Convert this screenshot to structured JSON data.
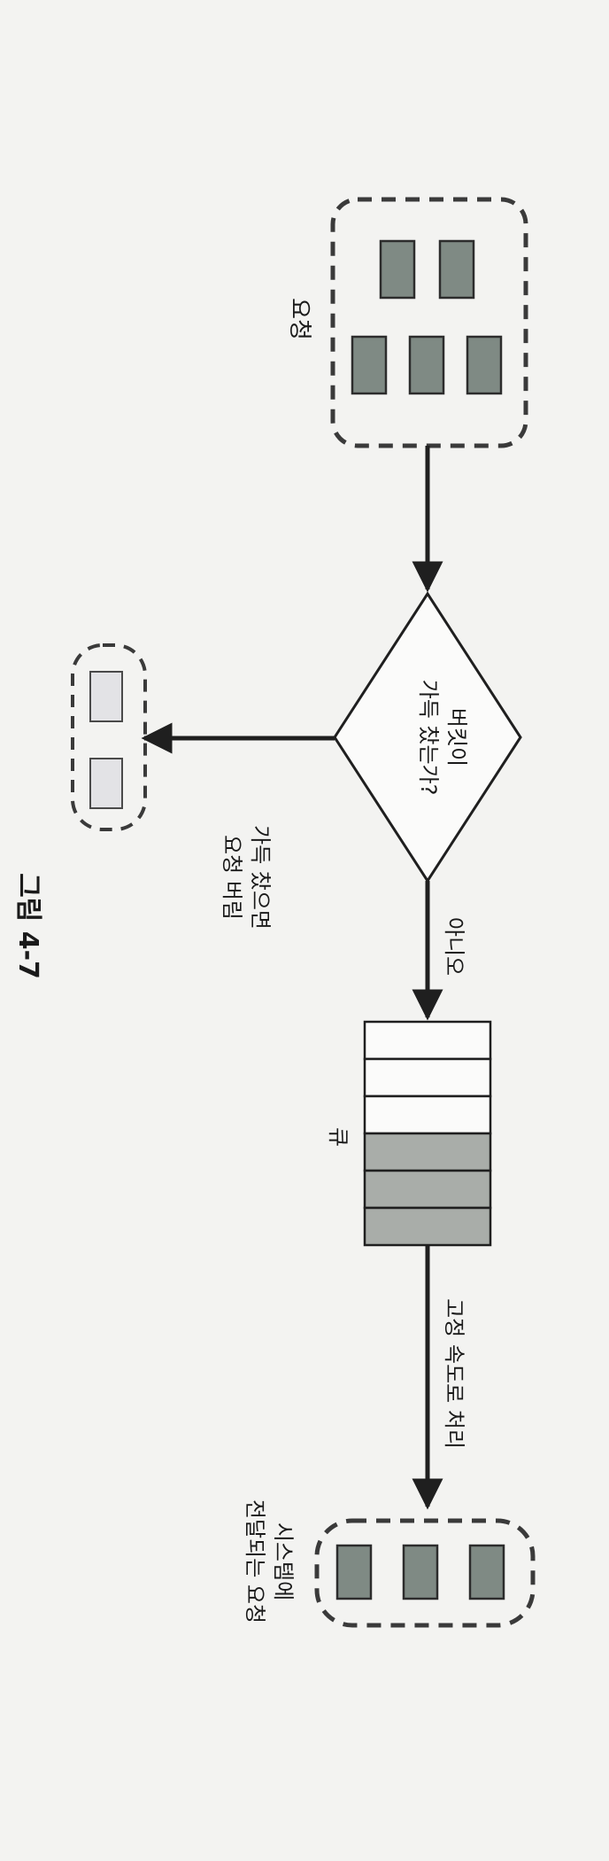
{
  "figure": {
    "caption": "그림 4-7"
  },
  "nodes": {
    "requests": {
      "label": "요청"
    },
    "decision": {
      "line1": "버킷이",
      "line2": "가득 찼는가?"
    },
    "dropped": {
      "line1": "가득 찼으면",
      "line2": "요청 버림"
    },
    "queue": {
      "label": "큐"
    },
    "delivered": {
      "line1": "시스템에",
      "line2": "전달되는 요청"
    }
  },
  "edges": {
    "no": {
      "label": "아니오"
    },
    "fixed_rate": {
      "label": "고정 속도로 처리"
    }
  },
  "colors": {
    "dark_box": "#7f8a84",
    "medium_box": "#a9ada9",
    "light_box": "#e3e3e6",
    "stroke": "#2c2c2c"
  }
}
